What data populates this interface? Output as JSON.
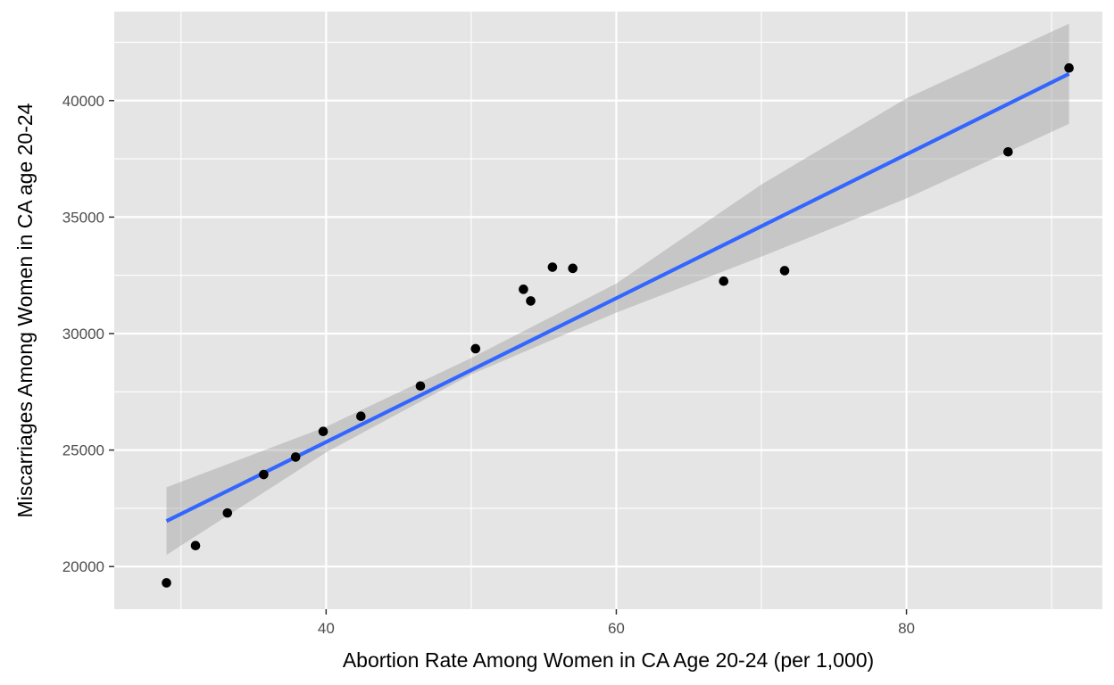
{
  "chart_data": {
    "type": "scatter",
    "title": "",
    "xlabel": "Abortion Rate Among Women in CA Age 20-24 (per 1,000)",
    "ylabel": "Miscarriages Among Women in CA age 20-24",
    "xlim": [
      25.4,
      93.5
    ],
    "ylim": [
      18170,
      43820
    ],
    "x_ticks": [
      40,
      60,
      80
    ],
    "x_tick_labels": [
      "40",
      "60",
      "80"
    ],
    "y_ticks": [
      20000,
      25000,
      30000,
      35000,
      40000
    ],
    "y_tick_labels": [
      "20000",
      "25000",
      "30000",
      "35000",
      "40000"
    ],
    "grid": true,
    "legend": "none",
    "points": [
      {
        "x": 29.0,
        "y": 19300
      },
      {
        "x": 31.0,
        "y": 20900
      },
      {
        "x": 33.2,
        "y": 22300
      },
      {
        "x": 35.7,
        "y": 23950
      },
      {
        "x": 37.9,
        "y": 24700
      },
      {
        "x": 39.8,
        "y": 25800
      },
      {
        "x": 42.4,
        "y": 26450
      },
      {
        "x": 46.5,
        "y": 27750
      },
      {
        "x": 50.3,
        "y": 29350
      },
      {
        "x": 53.6,
        "y": 31900
      },
      {
        "x": 54.1,
        "y": 31400
      },
      {
        "x": 55.6,
        "y": 32850
      },
      {
        "x": 57.0,
        "y": 32800
      },
      {
        "x": 67.4,
        "y": 32250
      },
      {
        "x": 71.6,
        "y": 32700
      },
      {
        "x": 87.0,
        "y": 37800
      },
      {
        "x": 91.2,
        "y": 41400
      }
    ],
    "fit_line": {
      "x": [
        29.0,
        91.2
      ],
      "y": [
        21950,
        41150
      ]
    },
    "confidence_band": {
      "x": [
        29.0,
        40.0,
        50.0,
        60.0,
        70.0,
        80.0,
        91.2
      ],
      "lower": [
        20500,
        24900,
        28250,
        30900,
        33300,
        35800,
        39000
      ],
      "upper": [
        23400,
        26000,
        28950,
        32150,
        36400,
        40100,
        43300
      ]
    },
    "colors": {
      "panel_background": "#e5e5e5",
      "grid": "#ffffff",
      "points": "#000000",
      "fit_line": "#3366ff",
      "band": "#999999"
    }
  }
}
